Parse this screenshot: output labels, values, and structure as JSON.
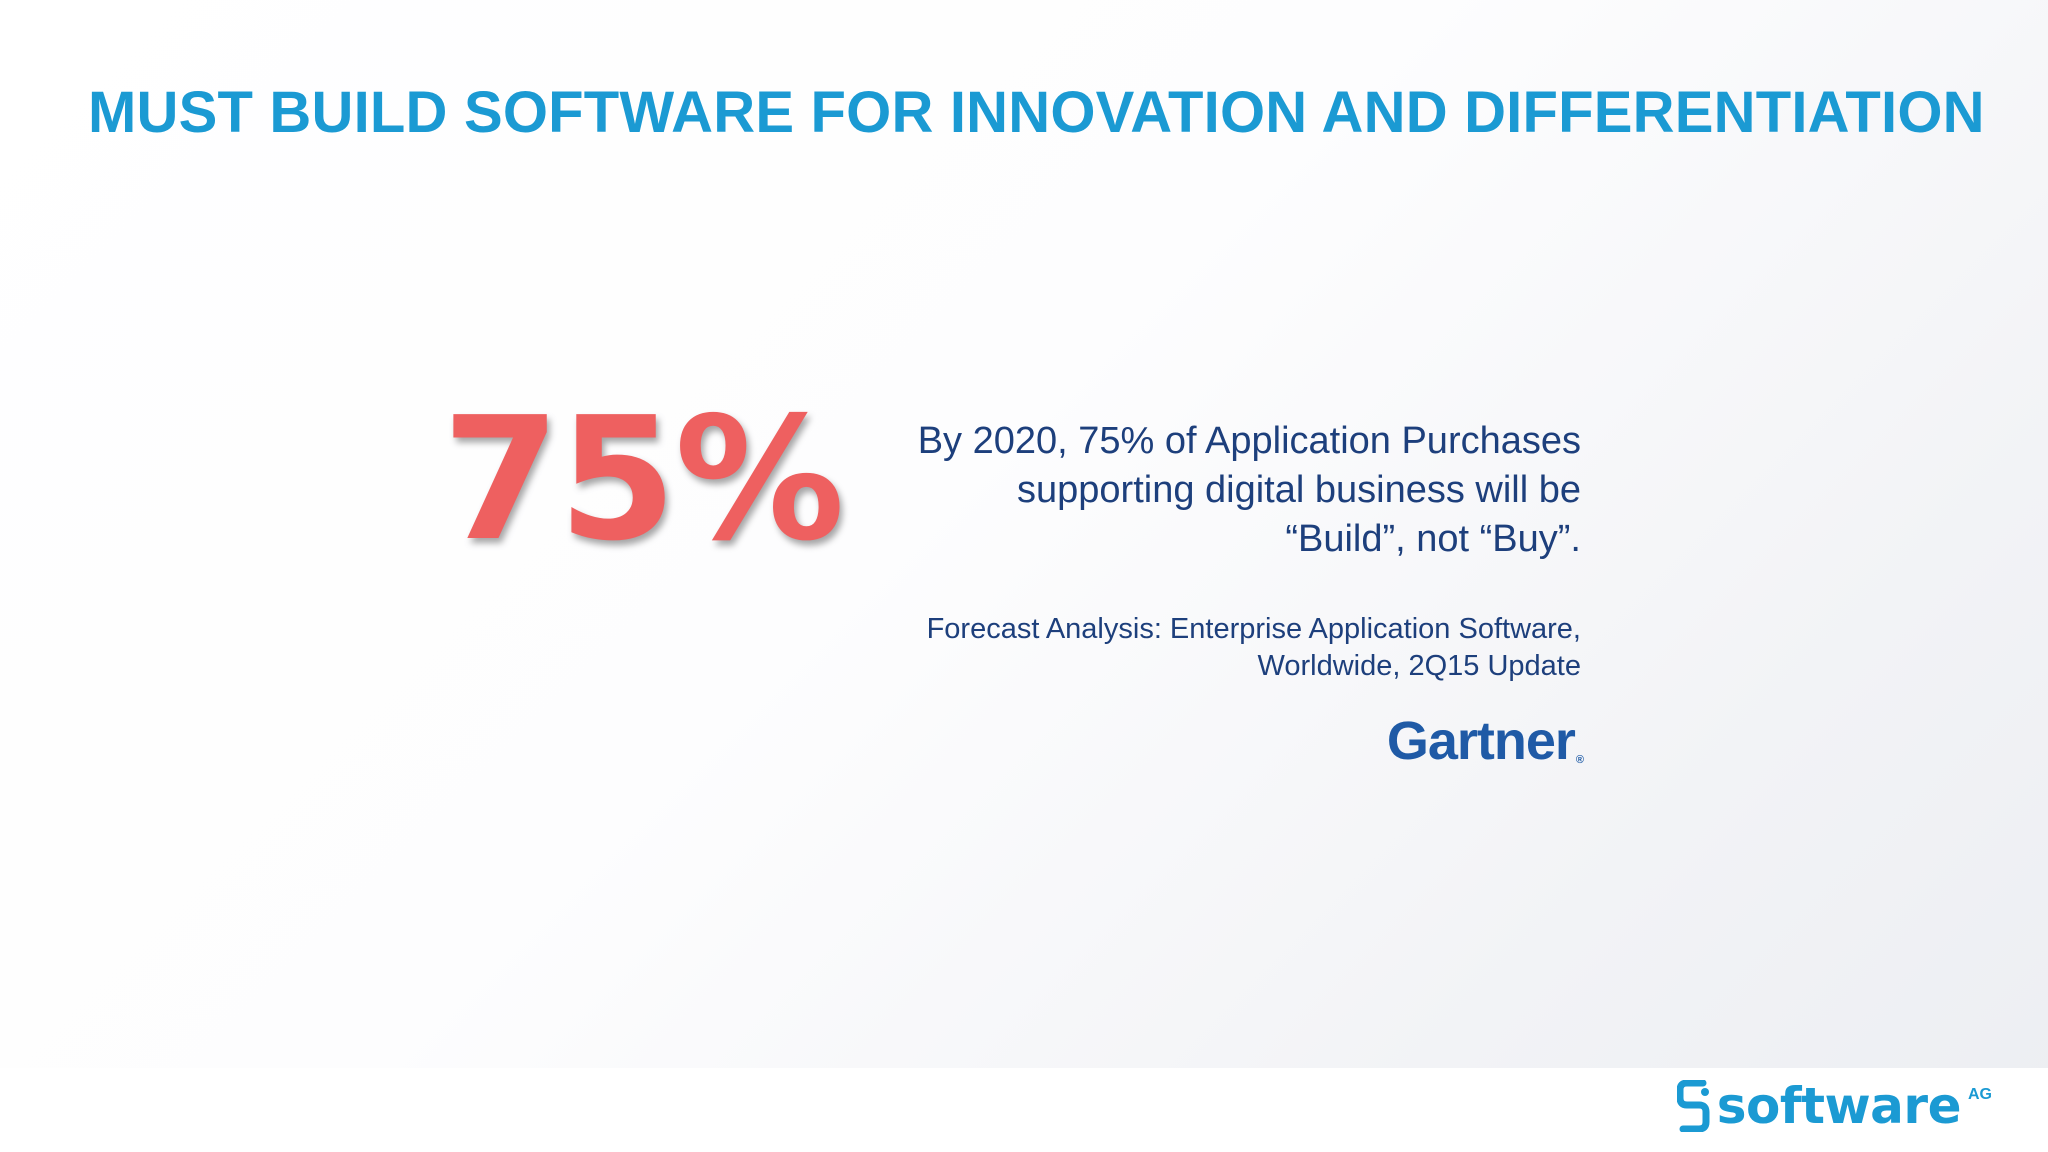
{
  "slide": {
    "title": "MUST BUILD SOFTWARE FOR INNOVATION AND DIFFERENTIATION",
    "stat": "75%",
    "statement_lines": [
      "By 2020, 75% of Application Purchases",
      "supporting digital business will be",
      "“Build”, not “Buy”."
    ],
    "source_lines": [
      "Forecast Analysis: Enterprise Application Software,",
      "Worldwide, 2Q15 Update"
    ]
  },
  "logos": {
    "gartner": {
      "text": "Gartner",
      "registered_mark": "®",
      "color": "#1f5aa6"
    },
    "software_ag": {
      "word": "software",
      "suffix": "AG",
      "icon": "software-ag-s-icon",
      "color": "#1b9ad3"
    }
  },
  "colors": {
    "title": "#1b9ad3",
    "stat": "#ee6060",
    "body_text": "#1d3f7c"
  }
}
